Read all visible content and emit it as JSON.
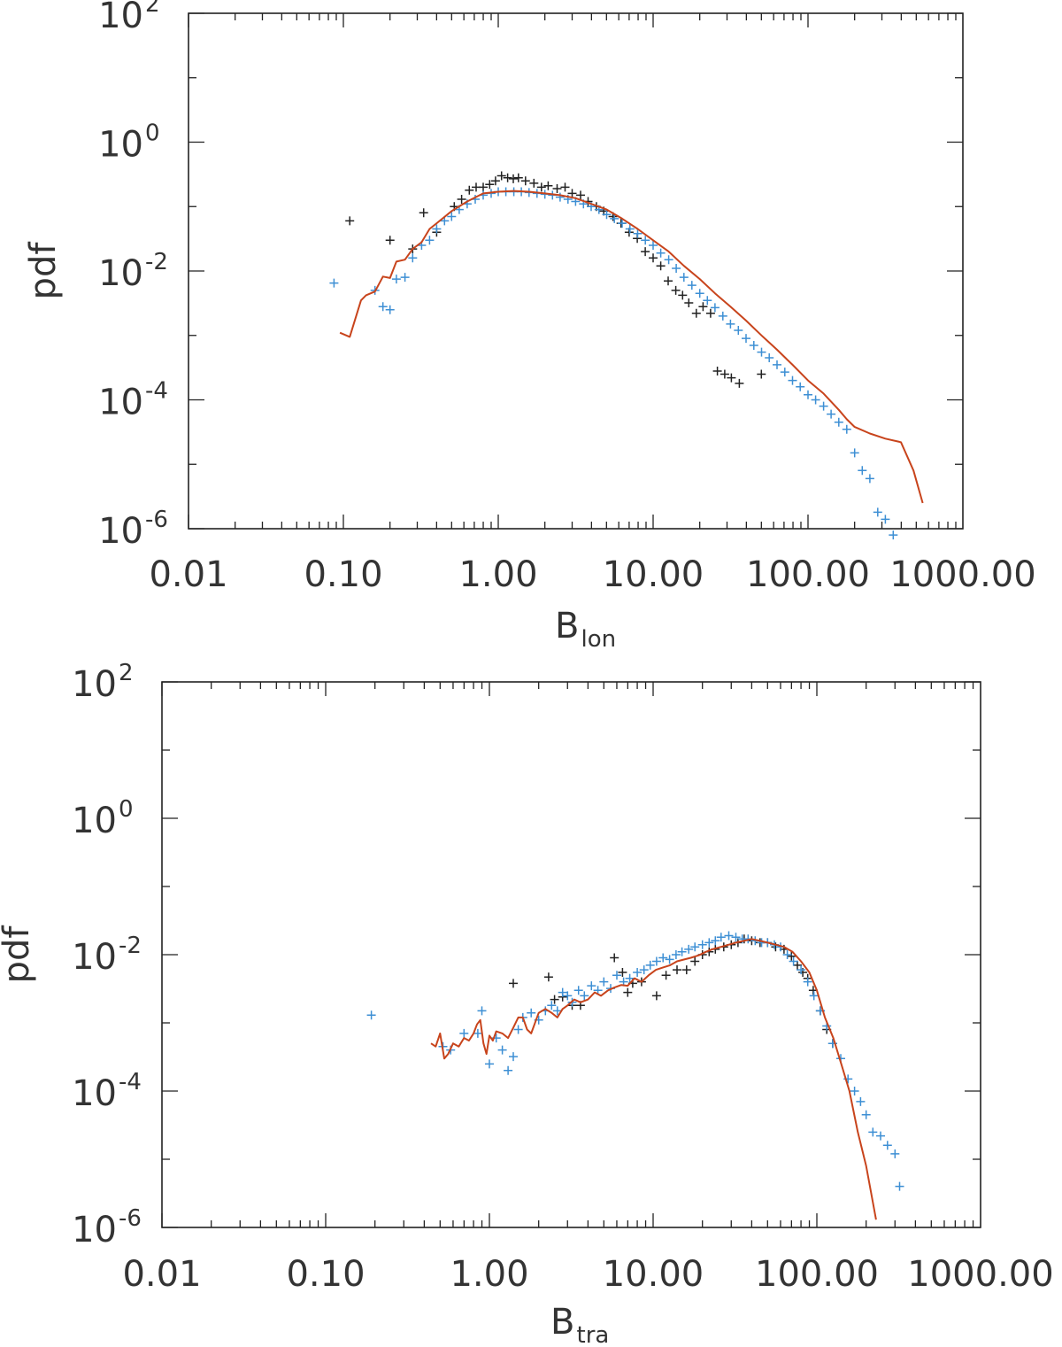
{
  "chart_data": [
    {
      "type": "scatter",
      "xlabel": "B",
      "xlabel_sub": "lon",
      "ylabel": "pdf",
      "x_scale": "log",
      "y_scale": "log",
      "xlim": [
        0.01,
        1000
      ],
      "ylim": [
        1e-06,
        100
      ],
      "x_tick_labels": [
        "0.01",
        "0.10",
        "1.00",
        "10.00",
        "100.00",
        "1000.00"
      ],
      "y_tick_labels": [
        {
          "base": "10",
          "exp": "2"
        },
        {
          "base": "10",
          "exp": "0"
        },
        {
          "base": "10",
          "exp": "-2"
        },
        {
          "base": "10",
          "exp": "-4"
        },
        {
          "base": "10",
          "exp": "-6"
        }
      ],
      "colors": {
        "black": "#222222",
        "blue": "#3d8fd4",
        "red": "#c8441c"
      },
      "series": [
        {
          "style": "plus",
          "color": "black",
          "x": [
            0.11,
            0.2,
            0.28,
            0.33,
            0.4,
            0.52,
            0.58,
            0.65,
            0.72,
            0.8,
            0.88,
            0.96,
            1.05,
            1.15,
            1.25,
            1.35,
            1.5,
            1.7,
            1.9,
            2.1,
            2.4,
            2.7,
            3.0,
            3.4,
            3.8,
            4.3,
            4.8,
            5.5,
            6.2,
            7.0,
            7.9,
            8.9,
            10.0,
            11.2,
            12.5,
            14.0,
            15.5,
            17.0,
            19.0,
            21.0,
            23.5,
            26.0,
            29.0,
            32.0,
            36.0,
            50.0
          ],
          "y": [
            0.06,
            0.03,
            0.022,
            0.08,
            0.04,
            0.1,
            0.13,
            0.18,
            0.2,
            0.2,
            0.22,
            0.25,
            0.3,
            0.28,
            0.27,
            0.28,
            0.25,
            0.23,
            0.2,
            0.21,
            0.19,
            0.2,
            0.16,
            0.15,
            0.12,
            0.1,
            0.085,
            0.07,
            0.055,
            0.04,
            0.032,
            0.02,
            0.016,
            0.012,
            0.007,
            0.005,
            0.0042,
            0.0032,
            0.0022,
            0.0028,
            0.0022,
            0.00028,
            0.00025,
            0.00022,
            0.00018,
            0.00025
          ]
        },
        {
          "style": "plus",
          "color": "blue",
          "x": [
            0.087,
            0.16,
            0.18,
            0.2,
            0.22,
            0.25,
            0.28,
            0.32,
            0.36,
            0.4,
            0.45,
            0.5,
            0.56,
            0.63,
            0.71,
            0.8,
            0.9,
            1.0,
            1.12,
            1.26,
            1.41,
            1.58,
            1.78,
            2.0,
            2.24,
            2.51,
            2.82,
            3.16,
            3.55,
            3.98,
            4.47,
            5.01,
            5.62,
            6.31,
            7.08,
            7.94,
            8.91,
            10.0,
            11.2,
            12.6,
            14.1,
            15.8,
            17.8,
            20.0,
            22.4,
            25.1,
            28.2,
            31.6,
            35.5,
            39.8,
            44.7,
            50.1,
            56.2,
            63.1,
            70.8,
            79.4,
            89.1,
            100.0,
            112.0,
            126.0,
            141.0,
            158.0,
            178.0,
            200.0,
            224.0,
            251.0,
            282.0,
            316.0,
            355.0
          ],
          "y": [
            0.0065,
            0.005,
            0.0028,
            0.0025,
            0.0075,
            0.008,
            0.016,
            0.025,
            0.03,
            0.045,
            0.06,
            0.07,
            0.09,
            0.11,
            0.13,
            0.15,
            0.16,
            0.17,
            0.17,
            0.17,
            0.17,
            0.165,
            0.16,
            0.155,
            0.15,
            0.14,
            0.13,
            0.12,
            0.11,
            0.1,
            0.09,
            0.075,
            0.065,
            0.055,
            0.045,
            0.038,
            0.03,
            0.025,
            0.019,
            0.015,
            0.011,
            0.008,
            0.006,
            0.0045,
            0.0035,
            0.0027,
            0.002,
            0.0015,
            0.0012,
            0.0009,
            0.0007,
            0.00055,
            0.00045,
            0.00035,
            0.00027,
            0.0002,
            0.00016,
            0.00012,
            0.0001,
            8e-05,
            6e-05,
            4.5e-05,
            3.5e-05,
            1.5e-05,
            8e-06,
            6e-06,
            1.8e-06,
            1.4e-06,
            8e-07
          ]
        },
        {
          "style": "line",
          "color": "red",
          "x": [
            0.095,
            0.11,
            0.13,
            0.14,
            0.16,
            0.18,
            0.2,
            0.22,
            0.25,
            0.28,
            0.32,
            0.36,
            0.4,
            0.5,
            0.63,
            0.8,
            1.0,
            1.26,
            1.58,
            2.0,
            2.51,
            3.16,
            3.98,
            5.01,
            6.31,
            7.94,
            10.0,
            12.6,
            15.8,
            20.0,
            25.1,
            31.6,
            39.8,
            50.1,
            63.1,
            79.4,
            100.0,
            126.0,
            158.0,
            178.0,
            200.0,
            251.0,
            316.0,
            398.0,
            480.0,
            550.0
          ],
          "y": [
            0.0011,
            0.00095,
            0.0035,
            0.0042,
            0.0048,
            0.0082,
            0.0078,
            0.014,
            0.015,
            0.022,
            0.028,
            0.045,
            0.055,
            0.085,
            0.12,
            0.16,
            0.17,
            0.175,
            0.17,
            0.16,
            0.15,
            0.135,
            0.11,
            0.09,
            0.065,
            0.045,
            0.03,
            0.02,
            0.012,
            0.0075,
            0.0045,
            0.0028,
            0.0017,
            0.001,
            0.0006,
            0.00035,
            0.0002,
            0.000125,
            7e-05,
            5e-05,
            3.8e-05,
            3e-05,
            2.5e-05,
            2.2e-05,
            8e-06,
            2.5e-06
          ]
        }
      ]
    },
    {
      "type": "scatter",
      "xlabel": "B",
      "xlabel_sub": "tra",
      "ylabel": "pdf",
      "x_scale": "log",
      "y_scale": "log",
      "xlim": [
        0.01,
        1000
      ],
      "ylim": [
        1e-06,
        100
      ],
      "x_tick_labels": [
        "0.01",
        "0.10",
        "1.00",
        "10.00",
        "100.00",
        "1000.00"
      ],
      "y_tick_labels": [
        {
          "base": "10",
          "exp": "2"
        },
        {
          "base": "10",
          "exp": "0"
        },
        {
          "base": "10",
          "exp": "-2"
        },
        {
          "base": "10",
          "exp": "-4"
        },
        {
          "base": "10",
          "exp": "-6"
        }
      ],
      "colors": {
        "black": "#222222",
        "blue": "#3d8fd4",
        "red": "#c8441c"
      },
      "series": [
        {
          "style": "plus",
          "color": "black",
          "x": [
            1.4,
            2.3,
            2.5,
            2.8,
            3.2,
            3.6,
            5.8,
            6.5,
            7.0,
            7.5,
            8.5,
            10.5,
            12.0,
            14.0,
            16.0,
            18.0,
            20.0,
            22.0,
            24.0,
            27.0,
            30.0,
            33.0,
            36.0,
            40.0,
            45.0,
            50.0,
            56.0,
            63.0,
            70.0,
            76.0,
            82.0,
            88.0,
            95.0,
            105.0,
            115.0,
            125.0
          ],
          "y": [
            0.0038,
            0.0047,
            0.0022,
            0.0024,
            0.0018,
            0.0018,
            0.009,
            0.0055,
            0.0028,
            0.0038,
            0.004,
            0.0025,
            0.005,
            0.006,
            0.006,
            0.008,
            0.01,
            0.011,
            0.012,
            0.013,
            0.014,
            0.015,
            0.017,
            0.016,
            0.015,
            0.015,
            0.013,
            0.012,
            0.0095,
            0.007,
            0.0055,
            0.0045,
            0.003,
            0.0015,
            0.0008,
            0.0005
          ]
        },
        {
          "style": "plus",
          "color": "blue",
          "x": [
            0.19,
            0.52,
            0.58,
            0.7,
            0.85,
            0.9,
            1.0,
            1.1,
            1.2,
            1.3,
            1.4,
            1.5,
            1.6,
            1.8,
            2.0,
            2.2,
            2.4,
            2.6,
            2.8,
            3.0,
            3.2,
            3.5,
            3.8,
            4.2,
            4.6,
            5.0,
            5.5,
            6.0,
            6.6,
            7.2,
            8.0,
            8.8,
            9.6,
            10.5,
            11.5,
            12.6,
            13.8,
            15.0,
            16.5,
            18.0,
            20.0,
            22.0,
            24.0,
            26.0,
            29.0,
            32.0,
            35.0,
            38.0,
            42.0,
            46.0,
            50.0,
            55.0,
            60.0,
            66.0,
            72.0,
            80.0,
            88.0,
            96.0,
            105.0,
            115.0,
            125.0,
            140.0,
            155.0,
            170.0,
            185.0,
            200.0,
            220.0,
            245.0,
            270.0,
            300.0,
            320.0
          ],
          "y": [
            0.0013,
            0.00045,
            0.0004,
            0.0007,
            0.0007,
            0.0015,
            0.00025,
            0.0006,
            0.0004,
            0.0002,
            0.00032,
            0.0008,
            0.0012,
            0.0014,
            0.0011,
            0.0015,
            0.0018,
            0.0015,
            0.0028,
            0.0025,
            0.002,
            0.003,
            0.0025,
            0.0035,
            0.003,
            0.004,
            0.0032,
            0.005,
            0.004,
            0.0045,
            0.0055,
            0.006,
            0.007,
            0.008,
            0.009,
            0.0085,
            0.01,
            0.011,
            0.012,
            0.013,
            0.014,
            0.015,
            0.016,
            0.018,
            0.019,
            0.018,
            0.017,
            0.017,
            0.016,
            0.015,
            0.015,
            0.014,
            0.013,
            0.01,
            0.008,
            0.006,
            0.004,
            0.0025,
            0.0015,
            0.0009,
            0.0005,
            0.0003,
            0.00015,
            0.0001,
            7e-05,
            4.5e-05,
            2.5e-05,
            2.2e-05,
            1.6e-05,
            1.2e-05,
            4e-06
          ]
        },
        {
          "style": "line",
          "color": "red",
          "x": [
            0.44,
            0.47,
            0.5,
            0.53,
            0.56,
            0.6,
            0.65,
            0.7,
            0.75,
            0.8,
            0.84,
            0.88,
            0.92,
            0.96,
            1.0,
            1.05,
            1.1,
            1.2,
            1.3,
            1.4,
            1.5,
            1.6,
            1.7,
            1.8,
            2.0,
            2.2,
            2.4,
            2.6,
            2.8,
            3.0,
            3.3,
            3.6,
            4.0,
            4.4,
            4.8,
            5.3,
            5.8,
            6.4,
            7.0,
            7.7,
            8.5,
            9.4,
            10.4,
            11.5,
            12.7,
            14.0,
            15.5,
            17.0,
            19.0,
            21.0,
            23.0,
            26.0,
            29.0,
            32.0,
            36.0,
            40.0,
            45.0,
            50.0,
            56.0,
            63.0,
            71.0,
            80.0,
            90.0,
            100.0,
            112.0,
            126.0,
            141.0,
            158.0,
            178.0,
            200.0,
            230.0
          ],
          "y": [
            0.0005,
            0.00045,
            0.0007,
            0.0003,
            0.00035,
            0.0005,
            0.00045,
            0.0006,
            0.00055,
            0.0007,
            0.00095,
            0.0011,
            0.0005,
            0.00035,
            0.00065,
            0.00055,
            0.00075,
            0.0007,
            0.0006,
            0.00085,
            0.0012,
            0.0012,
            0.0008,
            0.0007,
            0.0014,
            0.0016,
            0.0014,
            0.0012,
            0.0016,
            0.0018,
            0.0022,
            0.002,
            0.0022,
            0.0028,
            0.0025,
            0.003,
            0.0033,
            0.0036,
            0.0035,
            0.0045,
            0.004,
            0.005,
            0.006,
            0.0065,
            0.007,
            0.008,
            0.0085,
            0.009,
            0.0098,
            0.011,
            0.012,
            0.013,
            0.014,
            0.015,
            0.016,
            0.017,
            0.016,
            0.015,
            0.014,
            0.013,
            0.011,
            0.008,
            0.0055,
            0.003,
            0.0012,
            0.0006,
            0.00025,
            0.0001,
            2.5e-05,
            8e-06,
            1.3e-06
          ]
        }
      ]
    }
  ]
}
